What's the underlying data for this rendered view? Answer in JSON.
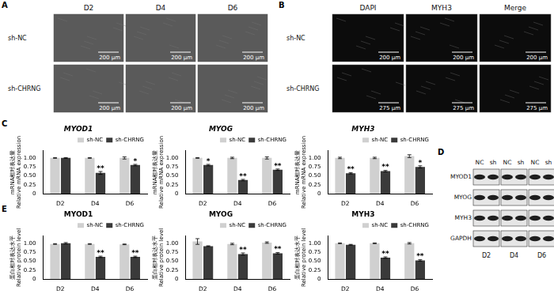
{
  "panel_labels": [
    "A",
    "B",
    "C",
    "D",
    "E"
  ],
  "panel_A": {
    "columns": [
      "D2",
      "D4",
      "D6"
    ],
    "rows": [
      "sh-NC",
      "sh-CHRNG"
    ],
    "scale_bar": "200 μm"
  },
  "panel_B": {
    "columns": [
      "DAPI",
      "MYH3",
      "Merge"
    ],
    "rows": [
      "sh-NC",
      "sh-CHRNG"
    ],
    "scale_bars": [
      "200 μm",
      "275 μm"
    ]
  },
  "panel_D": {
    "lanes": [
      "NC",
      "sh"
    ],
    "days": [
      "D2",
      "D4",
      "D6"
    ],
    "proteins": [
      "MYOD1",
      "MYOG",
      "MYH3",
      "GAPDH"
    ]
  },
  "chart_data": [
    {
      "type": "bar",
      "title": "MYOD1",
      "y_label": [
        "mRNA相对表达量",
        "Relative mRNA expression"
      ],
      "categories": [
        "D2",
        "D4",
        "D6"
      ],
      "series": [
        {
          "name": "sh-NC",
          "color": "#d0d0d0",
          "values": [
            1.0,
            1.0,
            1.0
          ],
          "errors": [
            0.01,
            0.01,
            0.03
          ],
          "significance": [
            null,
            null,
            null
          ]
        },
        {
          "name": "sh-CHRNG",
          "color": "#3a3a3a",
          "values": [
            1.0,
            0.58,
            0.8
          ],
          "errors": [
            0.01,
            0.04,
            0.02
          ],
          "significance": [
            null,
            "**",
            "*"
          ]
        }
      ],
      "ylim": [
        0,
        1.2
      ],
      "yticks": [
        0,
        0.25,
        {
          "value": 0.5,
          "label": "0.50"
        },
        0.75,
        {
          "value": 1,
          "label": "1.00"
        }
      ],
      "grid": false,
      "legend": "top"
    },
    {
      "type": "bar",
      "title": "MYOG",
      "y_label": [
        "mRNA相对表达量",
        "Relative mRNA expression"
      ],
      "categories": [
        "D2",
        "D4",
        "D6"
      ],
      "series": [
        {
          "name": "sh-NC",
          "color": "#d0d0d0",
          "values": [
            1.0,
            1.0,
            1.0
          ],
          "errors": [
            0.01,
            0.02,
            0.03
          ],
          "significance": [
            null,
            null,
            null
          ]
        },
        {
          "name": "sh-CHRNG",
          "color": "#3a3a3a",
          "values": [
            0.8,
            0.38,
            0.67
          ],
          "errors": [
            0.02,
            0.02,
            0.02
          ],
          "significance": [
            "*",
            "**",
            "**"
          ]
        }
      ],
      "ylim": [
        0,
        1.2
      ],
      "yticks": [
        0,
        0.25,
        {
          "value": 0.5,
          "label": "0.50"
        },
        0.75,
        {
          "value": 1,
          "label": "1.00"
        }
      ],
      "grid": false,
      "legend": "top"
    },
    {
      "type": "bar",
      "title": "MYH3",
      "y_label": [
        "mRNA相对表达量",
        "Relative mRNA expression"
      ],
      "categories": [
        "D2",
        "D4",
        "D6"
      ],
      "series": [
        {
          "name": "sh-NC",
          "color": "#d0d0d0",
          "values": [
            1.0,
            1.0,
            1.05
          ],
          "errors": [
            0.02,
            0.02,
            0.04
          ],
          "significance": [
            null,
            null,
            null
          ]
        },
        {
          "name": "sh-CHRNG",
          "color": "#3a3a3a",
          "values": [
            0.57,
            0.63,
            0.75
          ],
          "errors": [
            0.02,
            0.02,
            0.03
          ],
          "significance": [
            "**",
            "**",
            "*"
          ]
        }
      ],
      "ylim": [
        0,
        1.2
      ],
      "yticks": [
        0,
        0.25,
        {
          "value": 0.5,
          "label": "0.50"
        },
        0.75,
        {
          "value": 1,
          "label": "1.00"
        }
      ],
      "grid": false,
      "legend": "top"
    },
    {
      "type": "bar",
      "title": "MYOD1",
      "y_label": [
        "蛋白相对表达水平",
        "Relative protein level"
      ],
      "categories": [
        "D2",
        "D4",
        "D6"
      ],
      "series": [
        {
          "name": "sh-NC",
          "color": "#d0d0d0",
          "values": [
            0.98,
            0.98,
            0.97
          ],
          "errors": [
            0.01,
            0.01,
            0.01
          ],
          "significance": [
            null,
            null,
            null
          ]
        },
        {
          "name": "sh-CHRNG",
          "color": "#3a3a3a",
          "values": [
            1.0,
            0.62,
            0.62
          ],
          "errors": [
            0.02,
            0.02,
            0.02
          ],
          "significance": [
            null,
            "**",
            "**"
          ]
        }
      ],
      "ylim": [
        0,
        1.2
      ],
      "yticks": [
        0,
        0.25,
        {
          "value": 0.5,
          "label": "0.50"
        },
        0.75,
        {
          "value": 1,
          "label": "1.00"
        }
      ],
      "grid": false,
      "legend": "top"
    },
    {
      "type": "bar",
      "title": "MYOG",
      "y_label": [
        "蛋白相对表达水平",
        "Relative protein level"
      ],
      "categories": [
        "D2",
        "D4",
        "D6"
      ],
      "series": [
        {
          "name": "sh-NC",
          "color": "#d0d0d0",
          "values": [
            1.05,
            0.98,
            1.02
          ],
          "errors": [
            0.08,
            0.02,
            0.02
          ],
          "significance": [
            null,
            null,
            null
          ]
        },
        {
          "name": "sh-CHRNG",
          "color": "#3a3a3a",
          "values": [
            0.92,
            0.7,
            0.72
          ],
          "errors": [
            0.01,
            0.03,
            0.02
          ],
          "significance": [
            null,
            "**",
            "**"
          ]
        }
      ],
      "ylim": [
        0,
        1.2
      ],
      "yticks": [
        0,
        0.25,
        {
          "value": 0.5,
          "label": "0.50"
        },
        0.75,
        {
          "value": 1,
          "label": "1.00"
        }
      ],
      "grid": false,
      "legend": "top"
    },
    {
      "type": "bar",
      "title": "MYH3",
      "y_label": [
        "蛋白相对表达水平",
        "Relative protein level"
      ],
      "categories": [
        "D2",
        "D4",
        "D6"
      ],
      "series": [
        {
          "name": "sh-NC",
          "color": "#d0d0d0",
          "values": [
            1.0,
            1.0,
            1.0
          ],
          "errors": [
            0.01,
            0.01,
            0.02
          ],
          "significance": [
            null,
            null,
            null
          ]
        },
        {
          "name": "sh-CHRNG",
          "color": "#3a3a3a",
          "values": [
            0.96,
            0.6,
            0.52
          ],
          "errors": [
            0.01,
            0.02,
            0.02
          ],
          "significance": [
            null,
            "**",
            "**"
          ]
        }
      ],
      "ylim": [
        0,
        1.2
      ],
      "yticks": [
        0,
        0.25,
        {
          "value": 0.5,
          "label": "0.50"
        },
        0.75,
        {
          "value": 1,
          "label": "1.00"
        }
      ],
      "grid": false,
      "legend": "top"
    }
  ]
}
